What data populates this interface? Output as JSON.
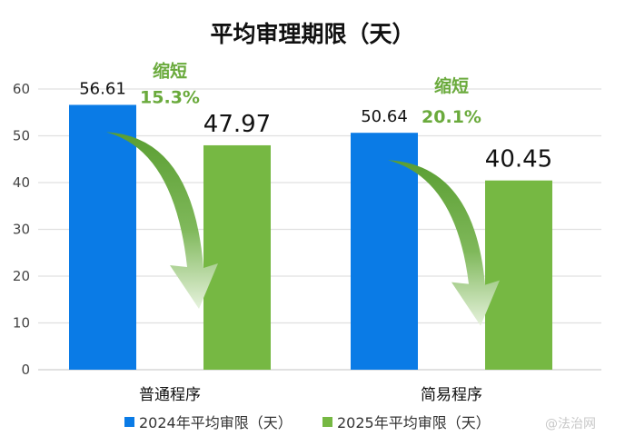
{
  "chart_data": {
    "type": "bar",
    "title": "平均审理期限（天）",
    "categories": [
      "普通程序",
      "简易程序"
    ],
    "series": [
      {
        "name": "2024年平均审限（天）",
        "values": [
          56.61,
          50.64
        ],
        "color": "#0a7be6"
      },
      {
        "name": "2025年平均审限（天）",
        "values": [
          47.97,
          40.45
        ],
        "color": "#76b843"
      }
    ],
    "ylim": [
      0,
      60
    ],
    "yticks": [
      0,
      10,
      20,
      30,
      40,
      50,
      60
    ],
    "grid": true,
    "legend": "bottom",
    "annotations": [
      {
        "label": "缩短",
        "value": "15.3%"
      },
      {
        "label": "缩短",
        "value": "20.1%"
      }
    ],
    "annotation_color": "#6aaa3c"
  },
  "watermark": "@法治网"
}
